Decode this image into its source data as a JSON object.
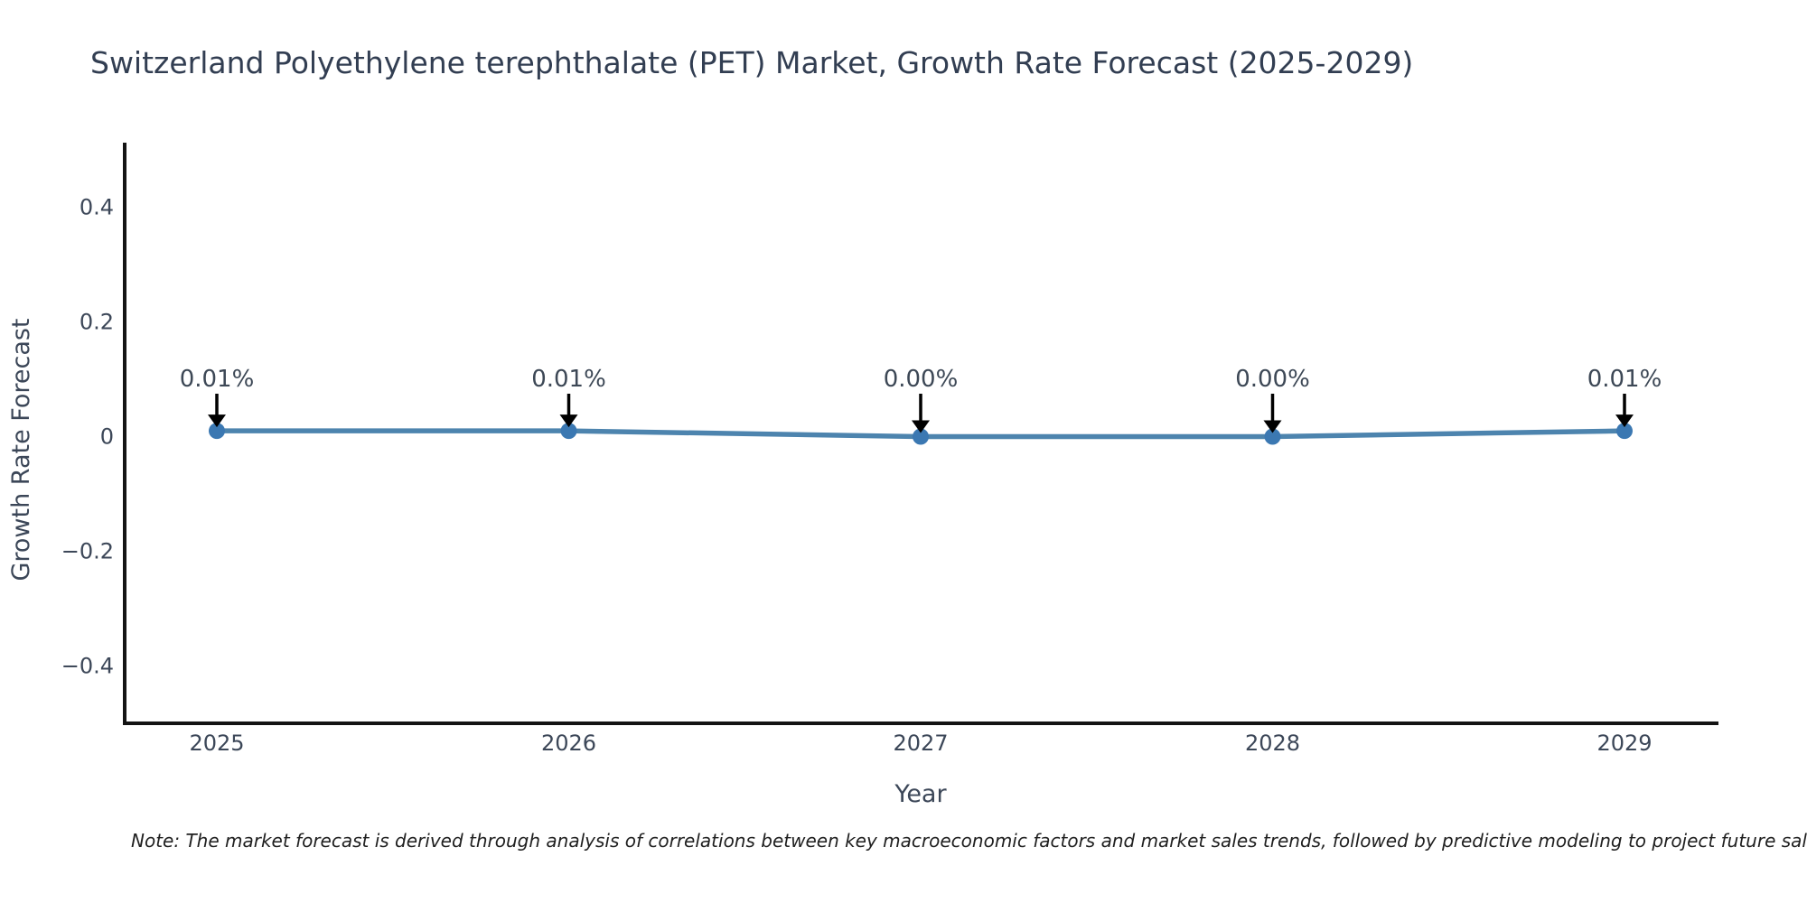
{
  "title": "Switzerland Polyethylene terephthalate (PET) Market, Growth Rate Forecast (2025-2029)",
  "footnote": "Note: The market forecast is derived through analysis of correlations between key macroeconomic factors and market sales trends, followed by predictive modeling to project future sales.",
  "chart_data": {
    "type": "line",
    "title": "Switzerland Polyethylene terephthalate (PET) Market, Growth Rate Forecast (2025-2029)",
    "xlabel": "Year",
    "ylabel": "Growth Rate Forecast",
    "categories": [
      "2025",
      "2026",
      "2027",
      "2028",
      "2029"
    ],
    "series": [
      {
        "name": "Growth Rate Forecast",
        "values": [
          0.01,
          0.01,
          0.0,
          0.0,
          0.01
        ]
      }
    ],
    "point_labels": [
      "0.01%",
      "0.01%",
      "0.00%",
      "0.00%",
      "0.01%"
    ],
    "y_ticks": [
      {
        "value": 0.4,
        "label": "0.4"
      },
      {
        "value": 0.2,
        "label": "0.2"
      },
      {
        "value": 0.0,
        "label": "0"
      },
      {
        "value": -0.2,
        "label": "−0.2"
      },
      {
        "value": -0.4,
        "label": "−0.4"
      }
    ],
    "ylim": [
      -0.5,
      0.51
    ],
    "grid": false,
    "legend": "none",
    "annotation_style": "value labels with downward black arrows above each data point",
    "colors": {
      "line": "#4d84ae",
      "marker": "#3b78b2",
      "arrow": "#000000",
      "spine": "#141414",
      "title_text": "#323e52",
      "axis_text": "#3c4758",
      "annotation_text": "#3d4856",
      "note_text": "#1f1f1f",
      "background": "#ffffff"
    }
  }
}
